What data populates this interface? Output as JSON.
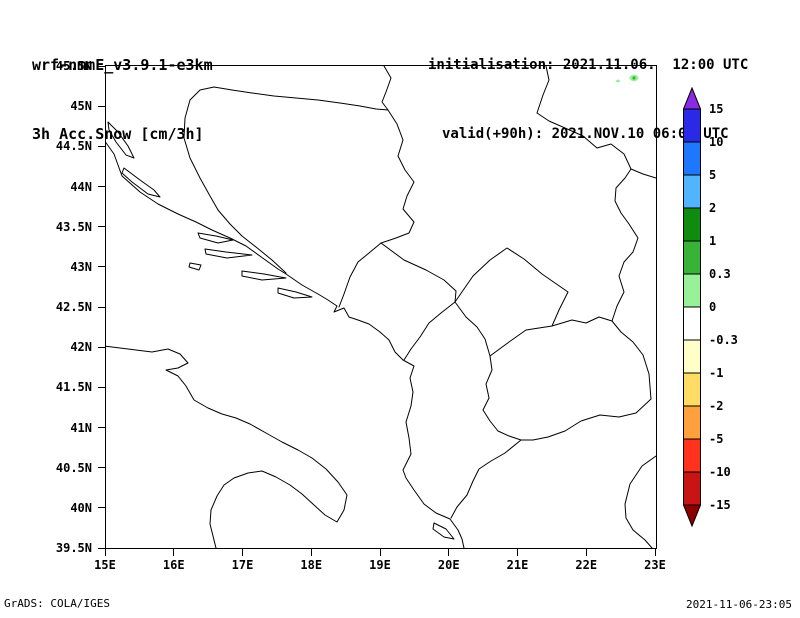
{
  "page": {
    "background": "#ffffff",
    "text_color": "#000000"
  },
  "header": {
    "model_title": "wrf-nmmE_v3.9.1-e3km",
    "field_title": "3h Acc.Snow [cm/3h]",
    "init_line": "initialisation: 2021.11.06.  12:00 UTC",
    "valid_line": "valid(+90h): 2021.NOV.10 06:00 UTC"
  },
  "map": {
    "x_tick_labels": [
      "15E",
      "16E",
      "17E",
      "18E",
      "19E",
      "20E",
      "21E",
      "22E",
      "23E"
    ],
    "y_tick_labels": [
      "45.5N",
      "45N",
      "44.5N",
      "44N",
      "43.5N",
      "43N",
      "42.5N",
      "42N",
      "41.5N",
      "41N",
      "40.5N",
      "40N",
      "39.5N"
    ],
    "frame_color": "#000000",
    "line_color": "#000000",
    "snow_spot_color": "#98f098",
    "snow_spot_core_color": "#37b437"
  },
  "colorbar": {
    "tick_labels": [
      "15",
      "10",
      "5",
      "2",
      "1",
      "0.3",
      "0",
      "-0.3",
      "-1",
      "-2",
      "-5",
      "-10",
      "-15"
    ],
    "band_colors_top_to_bottom": [
      "#2a2ae6",
      "#1e78ff",
      "#50b4ff",
      "#0f8c0f",
      "#37b437",
      "#98f098",
      "#ffffff",
      "#ffffc8",
      "#ffdc64",
      "#ffa03c",
      "#ff321e",
      "#c81414"
    ],
    "over_arrow_color": "#8a2be2",
    "under_arrow_color": "#8c0000"
  },
  "footer": {
    "left": "GrADS: COLA/IGES",
    "right": "2021-11-06-23:05"
  },
  "chart_data": {
    "type": "heatmap",
    "title": "3h Acc.Snow [cm/3h]",
    "model": "wrf-nmmE_v3.9.1-e3km",
    "x_axis": {
      "units": "degrees east",
      "range": [
        15,
        23
      ],
      "tick_step": 1
    },
    "y_axis": {
      "units": "degrees north",
      "range": [
        39.5,
        45.5
      ],
      "tick_step": 0.5
    },
    "colorbar_levels_cm": [
      15,
      10,
      5,
      2,
      1,
      0.3,
      0,
      -0.3,
      -1,
      -2,
      -5,
      -10,
      -15
    ],
    "data_points": [
      {
        "lon_e": 22.7,
        "lat_n": 45.35,
        "value_cm": "0-0.3"
      }
    ]
  }
}
